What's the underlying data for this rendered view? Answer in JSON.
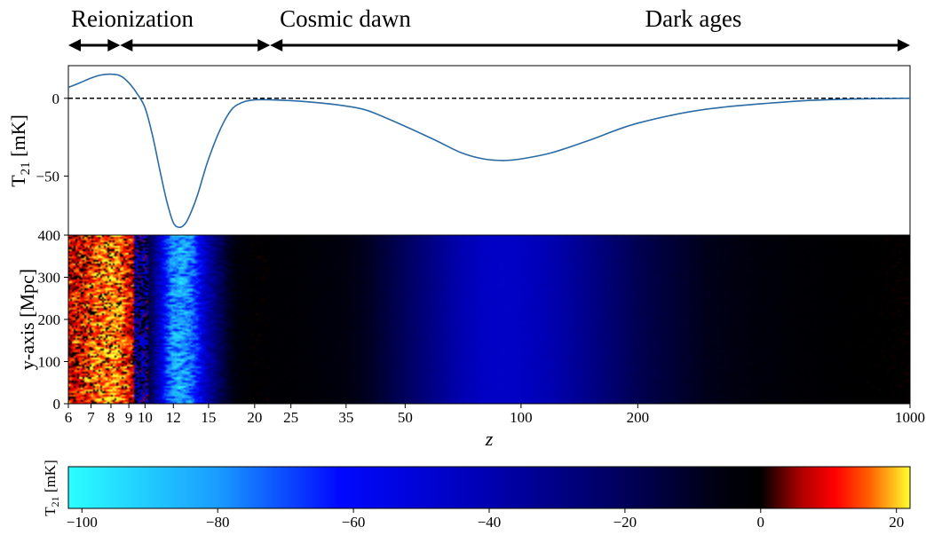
{
  "eras": [
    {
      "label": "Reionization",
      "z_start": 6,
      "z_end": 8.5
    },
    {
      "label": "Cosmic dawn",
      "z_start": 8.5,
      "z_end": 22
    },
    {
      "label": "Dark ages",
      "z_start": 22,
      "z_end": 1000
    }
  ],
  "chart_data": [
    {
      "type": "line",
      "title": "",
      "xlabel": "z",
      "ylabel": "T_21 [mK]",
      "x_scale": "log(1+z)",
      "xlim": [
        6,
        1000
      ],
      "ylim": [
        -88,
        21
      ],
      "yticks": [
        0,
        -50
      ],
      "ytick_labels": [
        "0",
        "−50"
      ],
      "reference_line": {
        "y": 0,
        "style": "dashed",
        "color": "#000000"
      },
      "series": [
        {
          "color": "#2a6ba5",
          "x": [
            6,
            6.5,
            7,
            7.5,
            8,
            8.5,
            9,
            9.5,
            10,
            10.5,
            11,
            11.5,
            12,
            12.5,
            13,
            13.5,
            14,
            14.5,
            15,
            16,
            17,
            18,
            20,
            25,
            30,
            35,
            40,
            50,
            60,
            70,
            80,
            90,
            100,
            120,
            150,
            200,
            300,
            500,
            700,
            1000
          ],
          "y": [
            7,
            10,
            13,
            15,
            15.5,
            14.5,
            10,
            3,
            -6,
            -24,
            -46,
            -66,
            -80,
            -83,
            -80,
            -72,
            -62,
            -50,
            -39,
            -22,
            -10,
            -4,
            -1,
            -1.5,
            -3,
            -5,
            -8,
            -18,
            -27,
            -35,
            -39,
            -40,
            -39,
            -35,
            -27,
            -16,
            -7,
            -2,
            -0.5,
            0
          ]
        }
      ]
    },
    {
      "type": "heatmap",
      "title": "",
      "xlabel": "z",
      "ylabel": "y-axis [Mpc]",
      "x_scale": "log(1+z)",
      "xlim": [
        6,
        1000
      ],
      "ylim": [
        0,
        400
      ],
      "xticks": [
        6,
        7,
        8,
        9,
        10,
        12,
        15,
        20,
        25,
        35,
        50,
        100,
        200,
        1000
      ],
      "xtick_labels": [
        "6",
        "7",
        "8",
        "9",
        "10",
        "12",
        "15",
        "20",
        "25",
        "35",
        "50",
        "100",
        "200",
        "1000"
      ],
      "yticks": [
        0,
        100,
        200,
        300,
        400
      ],
      "ytick_labels": [
        "0",
        "100",
        "200",
        "300",
        "400"
      ]
    },
    {
      "type": "colorbar",
      "label": "T_21 [mK]",
      "range": [
        -102,
        22
      ],
      "ticks": [
        -100,
        -80,
        -60,
        -40,
        -20,
        0,
        20
      ],
      "tick_labels": [
        "−100",
        "−80",
        "−60",
        "−40",
        "−20",
        "0",
        "20"
      ],
      "colors": [
        {
          "v": -102,
          "c": "#2affff"
        },
        {
          "v": -80,
          "c": "#1a9cff"
        },
        {
          "v": -62,
          "c": "#0008ff"
        },
        {
          "v": -42,
          "c": "#0000b8"
        },
        {
          "v": -20,
          "c": "#00005a"
        },
        {
          "v": -6,
          "c": "#000010"
        },
        {
          "v": 0,
          "c": "#000000"
        },
        {
          "v": 6,
          "c": "#b00000"
        },
        {
          "v": 11,
          "c": "#ff0000"
        },
        {
          "v": 16,
          "c": "#ff6000"
        },
        {
          "v": 22,
          "c": "#ffff30"
        }
      ]
    }
  ]
}
